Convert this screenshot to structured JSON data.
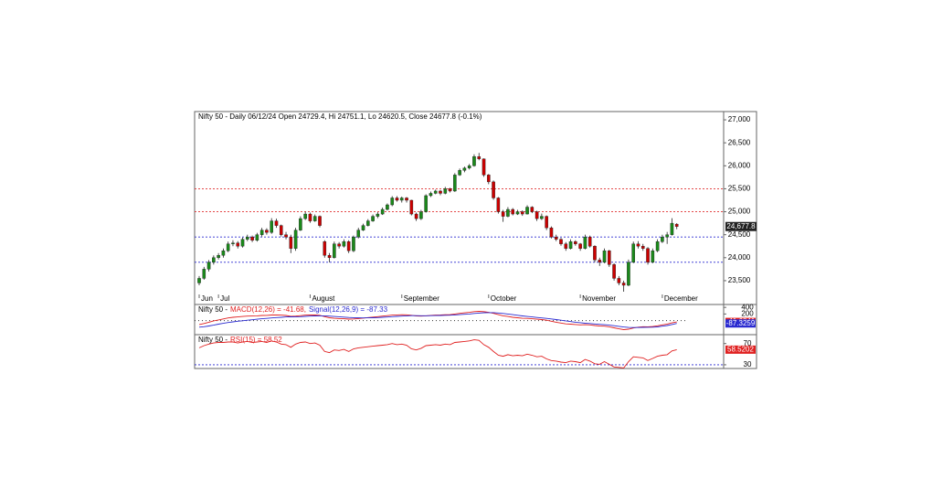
{
  "chart_data": [
    {
      "type": "candlestick",
      "title": "Nifty 50 - Daily 06/12/24 Open 24729.4, Hi 24751.1, Lo 24620.5, Close 24677.8 (-0.1%)",
      "categories": [
        "Jun",
        null,
        null,
        null,
        "Jul",
        null,
        null,
        null,
        null,
        null,
        null,
        null,
        null,
        null,
        null,
        null,
        null,
        null,
        null,
        null,
        null,
        null,
        null,
        "August",
        null,
        null,
        null,
        null,
        null,
        null,
        null,
        null,
        null,
        null,
        null,
        null,
        null,
        null,
        null,
        null,
        null,
        null,
        "September",
        null,
        null,
        null,
        null,
        null,
        null,
        null,
        null,
        null,
        null,
        null,
        null,
        null,
        null,
        null,
        null,
        null,
        "October",
        null,
        null,
        null,
        null,
        null,
        null,
        null,
        null,
        null,
        null,
        null,
        null,
        null,
        null,
        null,
        null,
        null,
        null,
        "November",
        null,
        null,
        null,
        null,
        null,
        null,
        null,
        null,
        null,
        null,
        null,
        null,
        null,
        null,
        null,
        null,
        "December",
        null,
        null,
        null
      ],
      "values": [
        [
          23450,
          23600,
          23400,
          23550
        ],
        [
          23550,
          23800,
          23520,
          23750
        ],
        [
          23750,
          23950,
          23700,
          23900
        ],
        [
          23900,
          24050,
          23850,
          24000
        ],
        [
          24000,
          24100,
          23960,
          24050
        ],
        [
          24050,
          24200,
          24000,
          24150
        ],
        [
          24150,
          24350,
          24120,
          24300
        ],
        [
          24300,
          24380,
          24250,
          24320
        ],
        [
          24320,
          24360,
          24200,
          24250
        ],
        [
          24250,
          24440,
          24220,
          24400
        ],
        [
          24400,
          24500,
          24360,
          24450
        ],
        [
          24450,
          24480,
          24340,
          24380
        ],
        [
          24380,
          24540,
          24350,
          24500
        ],
        [
          24500,
          24650,
          24460,
          24600
        ],
        [
          24600,
          24640,
          24500,
          24550
        ],
        [
          24550,
          24860,
          24520,
          24800
        ],
        [
          24800,
          24850,
          24650,
          24700
        ],
        [
          24700,
          24720,
          24460,
          24500
        ],
        [
          24500,
          24560,
          24400,
          24450
        ],
        [
          24450,
          24500,
          24100,
          24200
        ],
        [
          24200,
          24650,
          24150,
          24600
        ],
        [
          24600,
          24900,
          24580,
          24850
        ],
        [
          24850,
          25000,
          24820,
          24950
        ],
        [
          24950,
          24980,
          24760,
          24800
        ],
        [
          24800,
          24940,
          24780,
          24900
        ],
        [
          24900,
          24920,
          24660,
          24700
        ],
        [
          24350,
          24380,
          24000,
          24050
        ],
        [
          24050,
          24100,
          23900,
          24000
        ],
        [
          24000,
          24350,
          23980,
          24300
        ],
        [
          24300,
          24340,
          24200,
          24250
        ],
        [
          24250,
          24400,
          24220,
          24350
        ],
        [
          24350,
          24380,
          24100,
          24150
        ],
        [
          24150,
          24480,
          24120,
          24450
        ],
        [
          24450,
          24650,
          24420,
          24600
        ],
        [
          24600,
          24740,
          24580,
          24700
        ],
        [
          24700,
          24840,
          24680,
          24800
        ],
        [
          24800,
          24940,
          24780,
          24900
        ],
        [
          24900,
          24990,
          24860,
          24950
        ],
        [
          24950,
          25090,
          24930,
          25050
        ],
        [
          25050,
          25180,
          25030,
          25150
        ],
        [
          25150,
          25340,
          25120,
          25300
        ],
        [
          25300,
          25340,
          25220,
          25250
        ],
        [
          25250,
          25330,
          25200,
          25300
        ],
        [
          25300,
          25320,
          25200,
          25250
        ],
        [
          25250,
          25260,
          24920,
          24950
        ],
        [
          24950,
          24980,
          24800,
          24850
        ],
        [
          24850,
          25040,
          24820,
          25000
        ],
        [
          25000,
          25380,
          24980,
          25350
        ],
        [
          25350,
          25440,
          25320,
          25400
        ],
        [
          25400,
          25480,
          25380,
          25450
        ],
        [
          25450,
          25470,
          25360,
          25400
        ],
        [
          25400,
          25540,
          25380,
          25500
        ],
        [
          25500,
          25520,
          25420,
          25450
        ],
        [
          25450,
          25840,
          25430,
          25800
        ],
        [
          25800,
          25940,
          25780,
          25900
        ],
        [
          25900,
          25980,
          25860,
          25950
        ],
        [
          25950,
          26040,
          25920,
          26000
        ],
        [
          26000,
          26250,
          25980,
          26200
        ],
        [
          26200,
          26280,
          26120,
          26150
        ],
        [
          26150,
          26160,
          25760,
          25800
        ],
        [
          25800,
          25820,
          25600,
          25650
        ],
        [
          25650,
          25680,
          25260,
          25300
        ],
        [
          25300,
          25320,
          24960,
          25000
        ],
        [
          25000,
          25040,
          24780,
          24900
        ],
        [
          24900,
          25100,
          24880,
          25050
        ],
        [
          25050,
          25080,
          24920,
          24950
        ],
        [
          24950,
          25040,
          24930,
          25000
        ],
        [
          25000,
          25030,
          24910,
          24950
        ],
        [
          24950,
          25140,
          24940,
          25100
        ],
        [
          25100,
          25120,
          24970,
          25000
        ],
        [
          25000,
          25020,
          24800,
          24850
        ],
        [
          24850,
          24960,
          24820,
          24900
        ],
        [
          24900,
          24920,
          24600,
          24650
        ],
        [
          24650,
          24680,
          24420,
          24450
        ],
        [
          24450,
          24500,
          24360,
          24400
        ],
        [
          24400,
          24430,
          24260,
          24300
        ],
        [
          24300,
          24340,
          24150,
          24200
        ],
        [
          24200,
          24400,
          24180,
          24350
        ],
        [
          24350,
          24380,
          24260,
          24300
        ],
        [
          24300,
          24320,
          24150,
          24200
        ],
        [
          24200,
          24500,
          24180,
          24450
        ],
        [
          24450,
          24480,
          24220,
          24250
        ],
        [
          24250,
          24270,
          23900,
          23950
        ],
        [
          23950,
          24000,
          23820,
          23900
        ],
        [
          23900,
          24200,
          23880,
          24150
        ],
        [
          24150,
          24170,
          23800,
          23850
        ],
        [
          23850,
          23880,
          23500,
          23550
        ],
        [
          23550,
          23600,
          23400,
          23450
        ],
        [
          23450,
          23500,
          23260,
          23400
        ],
        [
          23400,
          23960,
          23380,
          23900
        ],
        [
          23900,
          24350,
          23880,
          24300
        ],
        [
          24300,
          24360,
          24200,
          24250
        ],
        [
          24250,
          24300,
          24150,
          24200
        ],
        [
          24200,
          24230,
          23850,
          23900
        ],
        [
          23900,
          24200,
          23880,
          24150
        ],
        [
          24150,
          24400,
          24120,
          24350
        ],
        [
          24350,
          24500,
          24320,
          24450
        ],
        [
          24450,
          24560,
          24300,
          24500
        ],
        [
          24500,
          24860,
          24480,
          24750
        ],
        [
          24729.4,
          24751.1,
          24620.5,
          24677.8
        ]
      ],
      "up_color": "#1a8a1a",
      "down_color": "#cc0000",
      "last_value_label": "24,677.8",
      "ylim": [
        23240,
        27180
      ],
      "yticks": [
        {
          "value": 23500,
          "label": "23,500"
        },
        {
          "value": 24000,
          "label": "24,000"
        },
        {
          "value": 24500,
          "label": "24,500"
        },
        {
          "value": 25000,
          "label": "25,000"
        },
        {
          "value": 25500,
          "label": "25,500"
        },
        {
          "value": 26000,
          "label": "26,000"
        },
        {
          "value": 26500,
          "label": "26,500"
        },
        {
          "value": 27000,
          "label": "27,000"
        }
      ],
      "reference_lines": [
        {
          "value": 25500,
          "color": "#e03030"
        },
        {
          "value": 25000,
          "color": "#e03030"
        },
        {
          "value": 24450,
          "color": "#2a2ad0"
        },
        {
          "value": 23900,
          "color": "#2a2ad0"
        }
      ]
    },
    {
      "type": "line",
      "title": "Nifty 50 -",
      "series": [
        {
          "name": "MACD(12,26) = -41.68,",
          "color": "#e02020",
          "last_value_label": "-41.6841",
          "values": [
            -120,
            -90,
            -50,
            -10,
            20,
            50,
            80,
            100,
            110,
            125,
            135,
            138,
            145,
            155,
            158,
            170,
            172,
            165,
            155,
            130,
            135,
            150,
            165,
            168,
            170,
            160,
            120,
            85,
            70,
            60,
            55,
            45,
            50,
            60,
            75,
            90,
            105,
            120,
            135,
            150,
            165,
            172,
            178,
            175,
            160,
            140,
            135,
            145,
            155,
            165,
            170,
            178,
            180,
            200,
            220,
            235,
            250,
            270,
            280,
            270,
            250,
            220,
            180,
            145,
            125,
            100,
            85,
            70,
            65,
            55,
            40,
            30,
            10,
            -20,
            -50,
            -75,
            -100,
            -110,
            -120,
            -130,
            -125,
            -130,
            -150,
            -165,
            -170,
            -190,
            -220,
            -250,
            -275,
            -260,
            -225,
            -200,
            -185,
            -190,
            -180,
            -160,
            -130,
            -105,
            -70,
            -41.68
          ]
        },
        {
          "name": "Signal(12,26,9) = -87.33",
          "color": "#2a2ad0",
          "last_value_label": "-87.3259",
          "values": [
            -200,
            -185,
            -165,
            -140,
            -110,
            -85,
            -60,
            -40,
            -20,
            -5,
            10,
            25,
            40,
            55,
            65,
            80,
            90,
            100,
            110,
            112,
            115,
            120,
            128,
            135,
            140,
            145,
            143,
            135,
            125,
            115,
            105,
            95,
            88,
            82,
            80,
            82,
            85,
            90,
            98,
            108,
            118,
            128,
            136,
            143,
            148,
            148,
            147,
            147,
            148,
            151,
            155,
            160,
            164,
            172,
            180,
            190,
            200,
            215,
            228,
            238,
            242,
            240,
            230,
            215,
            200,
            180,
            160,
            140,
            125,
            110,
            95,
            80,
            65,
            50,
            30,
            10,
            -10,
            -30,
            -50,
            -65,
            -80,
            -90,
            -102,
            -115,
            -126,
            -140,
            -155,
            -175,
            -195,
            -208,
            -212,
            -210,
            -207,
            -204,
            -200,
            -193,
            -170,
            -150,
            -120,
            -87.33
          ]
        }
      ],
      "ylim": [
        -400,
        460
      ],
      "yticks": [
        400,
        200
      ]
    },
    {
      "type": "line",
      "title": "Nifty 50 -",
      "series": [
        {
          "name": "RSI(15) = 58.52",
          "color": "#e02020",
          "last_value_label": "58.5202",
          "values": [
            62,
            66,
            69,
            71,
            72,
            72,
            73,
            73,
            71,
            73,
            74,
            72,
            73,
            74,
            72,
            75,
            73,
            69,
            68,
            63,
            69,
            72,
            73,
            70,
            71,
            67,
            55,
            53,
            58,
            57,
            59,
            55,
            60,
            62,
            63,
            64,
            65,
            66,
            67,
            68,
            70,
            68,
            69,
            67,
            60,
            58,
            61,
            66,
            67,
            68,
            67,
            69,
            68,
            72,
            73,
            74,
            75,
            77,
            76,
            68,
            63,
            55,
            48,
            46,
            49,
            47,
            48,
            47,
            50,
            48,
            45,
            46,
            41,
            38,
            37,
            35,
            34,
            37,
            36,
            34,
            40,
            37,
            32,
            31,
            36,
            31,
            26,
            25,
            24,
            36,
            45,
            44,
            43,
            38,
            42,
            46,
            48,
            49,
            56,
            58.52
          ]
        }
      ],
      "ylim": [
        23,
        85
      ],
      "yticks": [
        70,
        30
      ],
      "reference_lines": [
        {
          "value": 30,
          "color": "#2a2ad0"
        }
      ]
    }
  ]
}
